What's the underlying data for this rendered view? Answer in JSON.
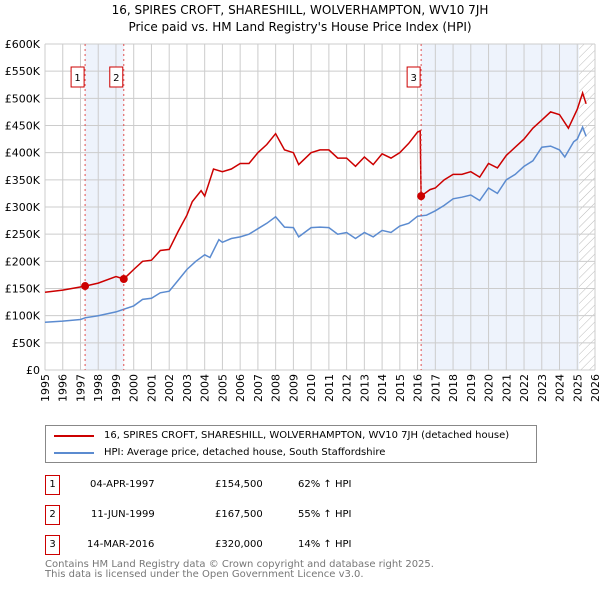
{
  "chart_data": {
    "type": "line",
    "title": "16, SPIRES CROFT, SHARESHILL, WOLVERHAMPTON, WV10 7JH",
    "subtitle": "Price paid vs. HM Land Registry's House Price Index (HPI)",
    "xlim": [
      1995,
      2026
    ],
    "ylim": [
      0,
      600000
    ],
    "yticks": [
      0,
      50000,
      100000,
      150000,
      200000,
      250000,
      300000,
      350000,
      400000,
      450000,
      500000,
      550000,
      600000
    ],
    "ytick_labels": [
      "£0",
      "£50K",
      "£100K",
      "£150K",
      "£200K",
      "£250K",
      "£300K",
      "£350K",
      "£400K",
      "£450K",
      "£500K",
      "£550K",
      "£600K"
    ],
    "xticks": [
      1995,
      1996,
      1997,
      1998,
      1999,
      2000,
      2001,
      2002,
      2003,
      2004,
      2005,
      2006,
      2007,
      2008,
      2009,
      2010,
      2011,
      2012,
      2013,
      2014,
      2015,
      2016,
      2017,
      2018,
      2019,
      2020,
      2021,
      2022,
      2023,
      2024,
      2025,
      2026
    ],
    "grid": true,
    "series": [
      {
        "name": "16, SPIRES CROFT, SHARESHILL, WOLVERHAMPTON, WV10 7JH (detached house)",
        "color": "#cc0000",
        "x": [
          1995,
          1996,
          1997.26,
          1998,
          1999,
          1999.44,
          2000,
          2000.5,
          2001,
          2001.5,
          2002,
          2002.5,
          2003,
          2003.3,
          2003.8,
          2004,
          2004.5,
          2005,
          2005.5,
          2006,
          2006.5,
          2007,
          2007.5,
          2008,
          2008.5,
          2009,
          2009.3,
          2010,
          2010.5,
          2011,
          2011.5,
          2012,
          2012.5,
          2013,
          2013.5,
          2014,
          2014.5,
          2015,
          2015.5,
          2016,
          2016.15,
          2016.2,
          2016.7,
          2017,
          2017.5,
          2018,
          2018.5,
          2019,
          2019.5,
          2020,
          2020.5,
          2021,
          2021.5,
          2022,
          2022.5,
          2023,
          2023.5,
          2024,
          2024.5,
          2025,
          2025.3,
          2025.5
        ],
        "y": [
          143000,
          147000,
          154500,
          160000,
          172000,
          167500,
          185000,
          200000,
          202000,
          220000,
          222000,
          255000,
          285000,
          310000,
          330000,
          320000,
          370000,
          365000,
          370000,
          380000,
          380000,
          400000,
          415000,
          435000,
          405000,
          400000,
          378000,
          400000,
          405000,
          405000,
          390000,
          390000,
          375000,
          392000,
          378000,
          398000,
          390000,
          400000,
          417000,
          438000,
          440000,
          320000,
          332000,
          335000,
          350000,
          360000,
          360000,
          365000,
          355000,
          380000,
          372000,
          395000,
          410000,
          425000,
          445000,
          460000,
          475000,
          470000,
          445000,
          480000,
          510000,
          490000
        ]
      },
      {
        "name": "HPI: Average price, detached house, South Staffordshire",
        "color": "#5b8bd0",
        "x": [
          1995,
          1996,
          1997,
          1997.26,
          1998,
          1999,
          2000,
          2000.5,
          2001,
          2001.5,
          2002,
          2002.5,
          2003,
          2003.5,
          2004,
          2004.3,
          2004.8,
          2005,
          2005.5,
          2006,
          2006.5,
          2007,
          2007.5,
          2008,
          2008.5,
          2009,
          2009.3,
          2010,
          2010.5,
          2011,
          2011.5,
          2012,
          2012.5,
          2013,
          2013.5,
          2014,
          2014.5,
          2015,
          2015.5,
          2016,
          2016.5,
          2017,
          2017.5,
          2018,
          2018.5,
          2019,
          2019.5,
          2020,
          2020.5,
          2021,
          2021.5,
          2022,
          2022.5,
          2023,
          2023.5,
          2024,
          2024.3,
          2024.8,
          2025,
          2025.3,
          2025.5
        ],
        "y": [
          88000,
          90000,
          93000,
          96000,
          100000,
          107000,
          118000,
          130000,
          132000,
          142000,
          145000,
          165000,
          185000,
          200000,
          212000,
          207000,
          240000,
          235000,
          242000,
          245000,
          250000,
          260000,
          270000,
          282000,
          263000,
          262000,
          245000,
          262000,
          263000,
          262000,
          250000,
          253000,
          242000,
          253000,
          245000,
          257000,
          253000,
          265000,
          270000,
          283000,
          285000,
          293000,
          303000,
          315000,
          318000,
          322000,
          312000,
          335000,
          325000,
          350000,
          360000,
          375000,
          385000,
          410000,
          412000,
          405000,
          392000,
          420000,
          425000,
          447000,
          430000
        ]
      }
    ],
    "sales": [
      {
        "label": "1",
        "x": 1997.26,
        "price": 154500,
        "date": "04-APR-1997",
        "price_text": "£154,500",
        "hpi_text": "62% ↑ HPI"
      },
      {
        "label": "2",
        "x": 1999.44,
        "price": 167500,
        "date": "11-JUN-1999",
        "price_text": "£167,500",
        "hpi_text": "55% ↑ HPI"
      },
      {
        "label": "3",
        "x": 2016.2,
        "price": 320000,
        "date": "14-MAR-2016",
        "price_text": "£320,000",
        "hpi_text": "14% ↑ HPI"
      }
    ],
    "shaded_ranges": [
      [
        1997.26,
        1999.44
      ],
      [
        2016.2,
        2025.1
      ]
    ],
    "hatched_from": 2025.1
  },
  "footer": [
    "Contains HM Land Registry data © Crown copyright and database right 2025.",
    "This data is licensed under the Open Government Licence v3.0."
  ]
}
